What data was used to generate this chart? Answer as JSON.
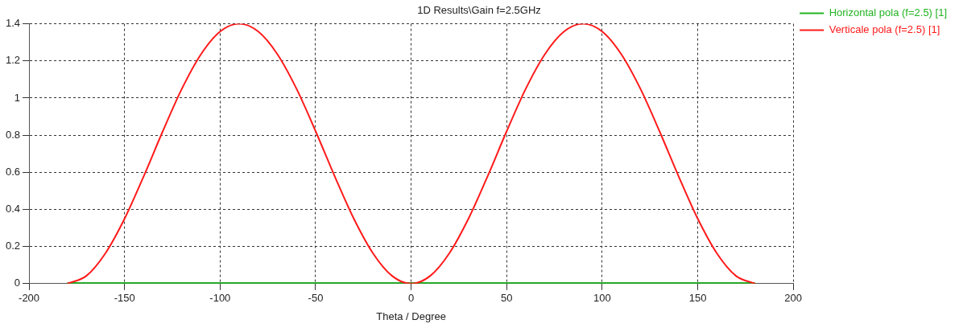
{
  "chart_data": {
    "type": "line",
    "title": "1D Results\\Gain f=2.5GHz",
    "xlabel": "Theta / Degree",
    "x": [
      -180,
      -170,
      -160,
      -150,
      -140,
      -130,
      -120,
      -110,
      -100,
      -90,
      -80,
      -70,
      -60,
      -50,
      -40,
      -30,
      -20,
      -10,
      0,
      10,
      20,
      30,
      40,
      50,
      60,
      70,
      80,
      90,
      100,
      110,
      120,
      130,
      140,
      150,
      160,
      170,
      180
    ],
    "series": [
      {
        "name": "Horizontal pola (f=2.5) [1]",
        "color": "#22b422",
        "values": [
          0,
          0,
          0,
          0,
          0,
          0,
          0,
          0,
          0,
          0,
          0,
          0,
          0,
          0,
          0,
          0,
          0,
          0,
          0,
          0,
          0,
          0,
          0,
          0,
          0,
          0,
          0,
          0,
          0,
          0,
          0,
          0,
          0,
          0,
          0,
          0,
          0
        ]
      },
      {
        "name": "Verticale pola (f=2.5) [1]",
        "color": "#ff1a1a",
        "values": [
          0,
          0.042,
          0.164,
          0.35,
          0.578,
          0.821,
          1.05,
          1.236,
          1.358,
          1.4,
          1.358,
          1.236,
          1.05,
          0.821,
          0.578,
          0.35,
          0.164,
          0.042,
          0,
          0.042,
          0.164,
          0.35,
          0.578,
          0.821,
          1.05,
          1.236,
          1.358,
          1.4,
          1.358,
          1.236,
          1.05,
          0.821,
          0.578,
          0.35,
          0.164,
          0.042,
          0
        ]
      }
    ],
    "xlim": [
      -200,
      200
    ],
    "xticks": [
      -200,
      -150,
      -100,
      -50,
      0,
      50,
      100,
      150,
      200
    ],
    "ylim": [
      0,
      1.4
    ],
    "yticks": [
      0,
      0.2,
      0.4,
      0.6,
      0.8,
      1,
      1.2,
      1.4
    ],
    "grid": true,
    "legend": "top right",
    "marker": "none",
    "line_style": "solid"
  }
}
